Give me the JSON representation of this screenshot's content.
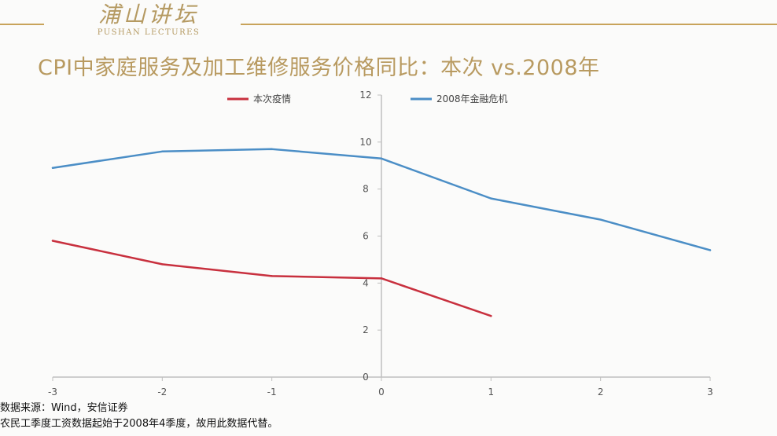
{
  "header": {
    "logo_cn": "浦山讲坛",
    "logo_en": "PUSHAN LECTURES"
  },
  "slide_title": "CPI中家庭服务及加工维修服务价格同比：本次 vs.2008年",
  "footnotes": [
    "数据来源：Wind，安信证券",
    "农民工季度工资数据起始于2008年4季度，故用此数据代替。"
  ],
  "colors": {
    "accent": "#c8a35a",
    "series_red": "#c8303e",
    "series_blue": "#4b8ec6",
    "axis": "#bfbfbf"
  },
  "chart_data": {
    "type": "line",
    "x_ticks": [
      "-3",
      "-2",
      "-1",
      "0",
      "1",
      "2",
      "3"
    ],
    "y_ticks": [
      "0",
      "2",
      "4",
      "6",
      "8",
      "10",
      "12"
    ],
    "xlim": [
      -3,
      3
    ],
    "ylim": [
      0,
      12
    ],
    "legend_position": "top",
    "series": [
      {
        "name": "本次疫情",
        "color": "#c8303e",
        "points": [
          [
            -3,
            5.8
          ],
          [
            -2,
            4.8
          ],
          [
            -1,
            4.3
          ],
          [
            0,
            4.2
          ],
          [
            1,
            2.6
          ]
        ]
      },
      {
        "name": "2008年金融危机",
        "color": "#4b8ec6",
        "points": [
          [
            -3,
            8.9
          ],
          [
            -2,
            9.6
          ],
          [
            -1,
            9.7
          ],
          [
            0,
            9.3
          ],
          [
            1,
            7.6
          ],
          [
            2,
            6.7
          ],
          [
            3,
            5.4
          ]
        ]
      }
    ]
  }
}
